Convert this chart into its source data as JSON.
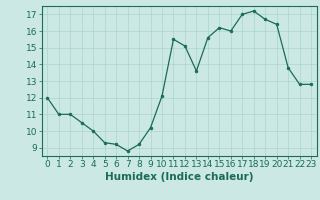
{
  "x": [
    0,
    1,
    2,
    3,
    4,
    5,
    6,
    7,
    8,
    9,
    10,
    11,
    12,
    13,
    14,
    15,
    16,
    17,
    18,
    19,
    20,
    21,
    22,
    23
  ],
  "y": [
    12,
    11,
    11,
    10.5,
    10,
    9.3,
    9.2,
    8.8,
    9.2,
    10.2,
    12.1,
    15.5,
    15.1,
    13.6,
    15.6,
    16.2,
    16.0,
    17.0,
    17.2,
    16.7,
    16.4,
    13.8,
    12.8,
    12.8
  ],
  "line_color": "#1a6b5a",
  "marker_color": "#1a6b5a",
  "bg_color": "#cce8e4",
  "grid_color": "#aad4ce",
  "xlabel": "Humidex (Indice chaleur)",
  "ylim": [
    8.5,
    17.5
  ],
  "xlim": [
    -0.5,
    23.5
  ],
  "yticks": [
    9,
    10,
    11,
    12,
    13,
    14,
    15,
    16,
    17
  ],
  "xticks": [
    0,
    1,
    2,
    3,
    4,
    5,
    6,
    7,
    8,
    9,
    10,
    11,
    12,
    13,
    14,
    15,
    16,
    17,
    18,
    19,
    20,
    21,
    22,
    23
  ],
  "tick_color": "#1a6b5a",
  "label_fontsize": 7.5,
  "tick_fontsize": 6.5
}
